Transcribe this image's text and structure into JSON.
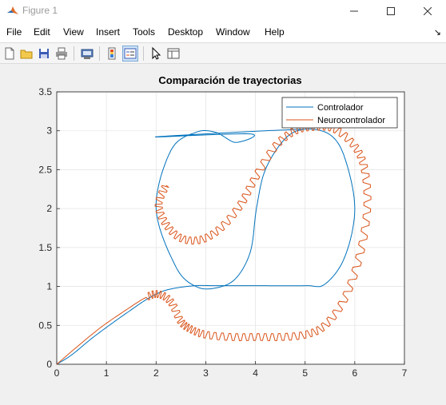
{
  "window": {
    "title": "Figure 1"
  },
  "menu": [
    "File",
    "Edit",
    "View",
    "Insert",
    "Tools",
    "Desktop",
    "Window",
    "Help"
  ],
  "menu_arrow": "↘",
  "toolbar_icons": [
    "new-figure-icon",
    "open-file-icon",
    "save-icon",
    "print-icon",
    "print-preview-icon",
    "insert-colorbar-icon",
    "insert-legend-icon",
    "edit-plot-icon",
    "property-inspector-icon"
  ],
  "colors": {
    "controlador": "#0072bd",
    "neurocontrolador": "#d95319"
  },
  "chart_data": {
    "type": "line",
    "title": "Comparación de trayectorias",
    "xlabel": "",
    "ylabel": "",
    "xlim": [
      0,
      7
    ],
    "ylim": [
      0,
      3.5
    ],
    "xticks": [
      "0",
      "1",
      "2",
      "3",
      "4",
      "5",
      "6",
      "7"
    ],
    "yticks": [
      "0",
      "0.5",
      "1",
      "1.5",
      "2",
      "2.5",
      "3",
      "3.5"
    ],
    "grid": true,
    "legend": "top-right",
    "series": [
      {
        "name": "Controlador",
        "points": [
          [
            0,
            0
          ],
          [
            0.3,
            0.12
          ],
          [
            0.7,
            0.33
          ],
          [
            1.1,
            0.52
          ],
          [
            1.5,
            0.7
          ],
          [
            1.8,
            0.83
          ],
          [
            2.1,
            0.93
          ],
          [
            2.4,
            0.98
          ],
          [
            2.8,
            1.01
          ],
          [
            3.2,
            1.01
          ],
          [
            4.0,
            1.01
          ],
          [
            5.0,
            1.01
          ],
          [
            5.4,
            1.03
          ],
          [
            5.8,
            1.38
          ],
          [
            6.0,
            2.0
          ],
          [
            5.8,
            2.65
          ],
          [
            5.5,
            2.95
          ],
          [
            5.0,
            3.02
          ],
          [
            4.6,
            2.9
          ],
          [
            4.2,
            2.5
          ],
          [
            4.02,
            2.0
          ],
          [
            3.9,
            1.45
          ],
          [
            3.6,
            1.1
          ],
          [
            3.2,
            0.98
          ],
          [
            2.8,
            1.0
          ],
          [
            2.4,
            1.25
          ],
          [
            2.0,
            2.0
          ],
          [
            2.3,
            2.75
          ],
          [
            2.8,
            2.98
          ],
          [
            3.2,
            2.98
          ],
          [
            3.6,
            2.85
          ],
          [
            3.9,
            2.96
          ],
          [
            2.0,
            2.92
          ],
          [
            3.0,
            2.96
          ],
          [
            4.2,
            3.0
          ],
          [
            5.0,
            3.02
          ]
        ]
      },
      {
        "name": "Neurocontrolador",
        "points": [
          [
            0,
            0
          ],
          [
            0.4,
            0.22
          ],
          [
            0.9,
            0.48
          ],
          [
            1.4,
            0.7
          ],
          [
            1.8,
            0.86
          ],
          [
            2.05,
            0.9
          ],
          [
            2.3,
            0.8
          ],
          [
            2.5,
            0.55
          ],
          [
            2.7,
            0.45
          ],
          [
            3.0,
            0.38
          ],
          [
            3.5,
            0.35
          ],
          [
            4.0,
            0.35
          ],
          [
            4.5,
            0.35
          ],
          [
            5.0,
            0.38
          ],
          [
            5.4,
            0.5
          ],
          [
            5.8,
            0.85
          ],
          [
            6.1,
            1.4
          ],
          [
            6.25,
            2.0
          ],
          [
            6.2,
            2.5
          ],
          [
            6.0,
            2.8
          ],
          [
            5.6,
            3.02
          ],
          [
            5.2,
            3.05
          ],
          [
            4.8,
            3.0
          ],
          [
            4.4,
            2.8
          ],
          [
            4.0,
            2.4
          ],
          [
            3.7,
            2.05
          ],
          [
            3.3,
            1.75
          ],
          [
            2.9,
            1.6
          ],
          [
            2.5,
            1.62
          ],
          [
            2.2,
            1.8
          ],
          [
            2.05,
            2.05
          ],
          [
            2.2,
            2.3
          ]
        ]
      }
    ],
    "oscillation_amplitude": 0.07
  }
}
